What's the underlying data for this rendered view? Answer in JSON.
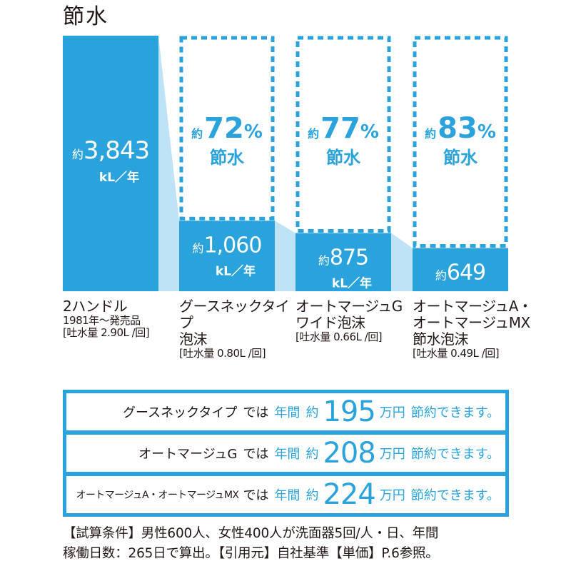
{
  "title": "節水",
  "colors": {
    "blue": "#2aa3dd",
    "light": "#bfe3f6",
    "text": "#231815",
    "white": "#ffffff"
  },
  "chart_data": {
    "type": "bar",
    "unit": "kL／年",
    "categories": [
      {
        "name": "2ハンドル",
        "sub": "1981年～発売品",
        "spec": "[吐水量 2.90L /回]"
      },
      {
        "name": "グースネックタイプ",
        "sub": "泡沫",
        "spec": "[吐水量 0.80L /回]"
      },
      {
        "name": "オートマージュG",
        "sub": "ワイド泡沫",
        "spec": "[吐水量 0.66L /回]"
      },
      {
        "name": "オートマージュA・",
        "name2": "オートマージュMX",
        "sub": "節水泡沫",
        "spec": "[吐水量 0.49L /回]"
      }
    ],
    "values": [
      3843,
      1060,
      875,
      649
    ],
    "value_labels": [
      "3,843",
      "1,060",
      "875",
      "649"
    ],
    "savings": [
      "72",
      "77",
      "83"
    ],
    "value_prefix": "約",
    "percent_sign": "%",
    "savings_label": "節水"
  },
  "summary": [
    {
      "name": "グースネックタイプ",
      "de": "では",
      "nenkan": "年間",
      "yaku": "約",
      "amount": "195",
      "unit": "万円",
      "tail": "節約できます。"
    },
    {
      "name": "オートマージュG",
      "de": "では",
      "nenkan": "年間",
      "yaku": "約",
      "amount": "208",
      "unit": "万円",
      "tail": "節約できます。"
    },
    {
      "name": "オートマージュA・オートマージュMX",
      "de": "では",
      "nenkan": "年間",
      "yaku": "約",
      "amount": "224",
      "unit": "万円",
      "tail": "節約できます。"
    }
  ],
  "note": {
    "line1": "【試算条件】男性600人、女性400人が洗面器5回/人・日、年間",
    "line2": "稼働日数：265日で算出。【引用元】自社基準【単価】P.6参照。"
  }
}
